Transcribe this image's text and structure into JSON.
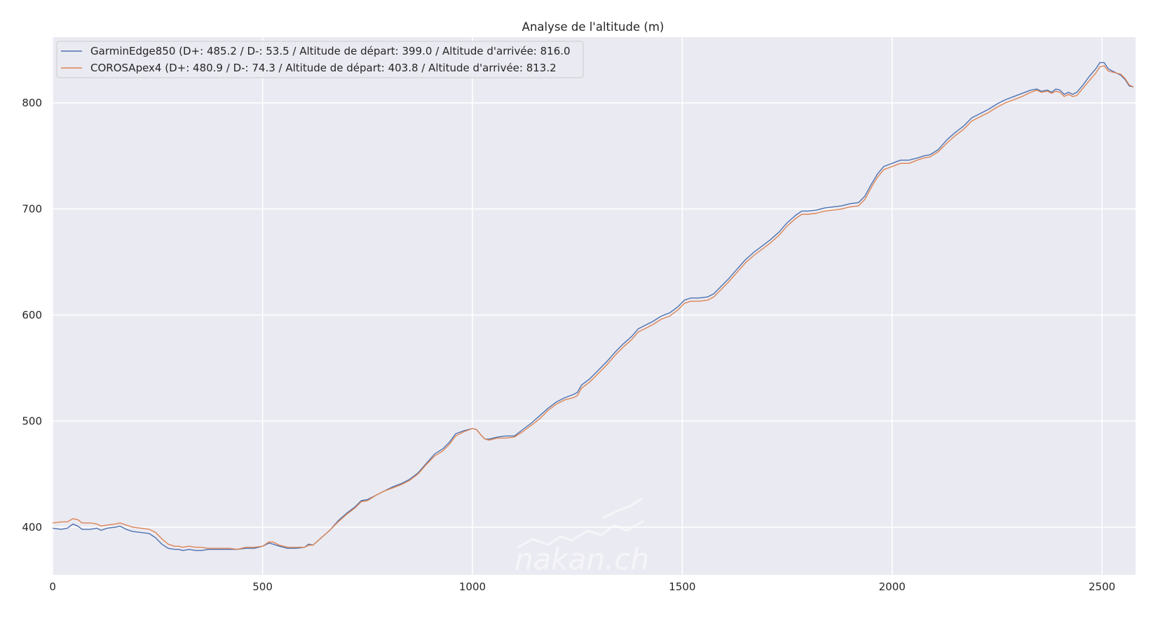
{
  "chart_data": {
    "type": "line",
    "title": "Analyse de l'altitude (m)",
    "xlabel": "",
    "ylabel": "",
    "xlim": [
      -2,
      2580
    ],
    "ylim": [
      355,
      862
    ],
    "x_ticks": [
      0,
      500,
      1000,
      1500,
      2000,
      2500
    ],
    "y_ticks": [
      400,
      500,
      600,
      700,
      800
    ],
    "grid": true,
    "legend_position": "top-left",
    "watermark": "nakan.ch",
    "series": [
      {
        "name": "GarminEdge850 (D+: 485.2 / D-: 53.5 / Altitude de départ: 399.0 / Altitude d'arrivée: 816.0",
        "color": "#4c72b0",
        "points": [
          [
            0,
            399
          ],
          [
            20,
            398
          ],
          [
            35,
            399
          ],
          [
            48,
            403
          ],
          [
            60,
            401
          ],
          [
            70,
            398
          ],
          [
            90,
            398
          ],
          [
            105,
            399
          ],
          [
            115,
            397
          ],
          [
            130,
            399
          ],
          [
            150,
            400
          ],
          [
            160,
            401
          ],
          [
            175,
            398
          ],
          [
            190,
            396
          ],
          [
            210,
            395
          ],
          [
            230,
            394
          ],
          [
            245,
            390
          ],
          [
            260,
            384
          ],
          [
            275,
            380
          ],
          [
            290,
            379
          ],
          [
            300,
            379
          ],
          [
            310,
            378
          ],
          [
            325,
            379
          ],
          [
            340,
            378
          ],
          [
            355,
            378
          ],
          [
            370,
            379
          ],
          [
            385,
            379
          ],
          [
            400,
            379
          ],
          [
            420,
            379
          ],
          [
            440,
            379
          ],
          [
            460,
            380
          ],
          [
            480,
            380
          ],
          [
            500,
            382
          ],
          [
            515,
            385
          ],
          [
            525,
            384
          ],
          [
            540,
            382
          ],
          [
            560,
            380
          ],
          [
            580,
            380
          ],
          [
            600,
            381
          ],
          [
            610,
            384
          ],
          [
            620,
            383
          ],
          [
            640,
            390
          ],
          [
            660,
            397
          ],
          [
            680,
            406
          ],
          [
            700,
            413
          ],
          [
            720,
            419
          ],
          [
            735,
            425
          ],
          [
            750,
            426
          ],
          [
            770,
            430
          ],
          [
            790,
            434
          ],
          [
            810,
            438
          ],
          [
            830,
            441
          ],
          [
            850,
            445
          ],
          [
            870,
            451
          ],
          [
            890,
            460
          ],
          [
            910,
            469
          ],
          [
            930,
            474
          ],
          [
            945,
            480
          ],
          [
            960,
            488
          ],
          [
            980,
            491
          ],
          [
            1000,
            493
          ],
          [
            1010,
            492
          ],
          [
            1020,
            487
          ],
          [
            1030,
            483
          ],
          [
            1040,
            483
          ],
          [
            1060,
            485
          ],
          [
            1080,
            486
          ],
          [
            1100,
            486
          ],
          [
            1120,
            492
          ],
          [
            1140,
            498
          ],
          [
            1160,
            505
          ],
          [
            1180,
            512
          ],
          [
            1200,
            518
          ],
          [
            1220,
            522
          ],
          [
            1240,
            525
          ],
          [
            1250,
            527
          ],
          [
            1260,
            534
          ],
          [
            1280,
            540
          ],
          [
            1300,
            548
          ],
          [
            1320,
            556
          ],
          [
            1340,
            565
          ],
          [
            1360,
            573
          ],
          [
            1380,
            580
          ],
          [
            1395,
            587
          ],
          [
            1410,
            590
          ],
          [
            1430,
            594
          ],
          [
            1450,
            599
          ],
          [
            1470,
            602
          ],
          [
            1490,
            608
          ],
          [
            1505,
            614
          ],
          [
            1520,
            616
          ],
          [
            1540,
            616
          ],
          [
            1560,
            617
          ],
          [
            1575,
            620
          ],
          [
            1590,
            626
          ],
          [
            1610,
            634
          ],
          [
            1630,
            643
          ],
          [
            1650,
            652
          ],
          [
            1670,
            659
          ],
          [
            1690,
            665
          ],
          [
            1710,
            671
          ],
          [
            1730,
            678
          ],
          [
            1750,
            687
          ],
          [
            1770,
            694
          ],
          [
            1785,
            698
          ],
          [
            1800,
            698
          ],
          [
            1820,
            699
          ],
          [
            1840,
            701
          ],
          [
            1860,
            702
          ],
          [
            1880,
            703
          ],
          [
            1900,
            705
          ],
          [
            1920,
            706
          ],
          [
            1935,
            712
          ],
          [
            1950,
            723
          ],
          [
            1965,
            733
          ],
          [
            1980,
            740
          ],
          [
            2000,
            743
          ],
          [
            2020,
            746
          ],
          [
            2040,
            746
          ],
          [
            2060,
            748
          ],
          [
            2075,
            750
          ],
          [
            2090,
            751
          ],
          [
            2110,
            756
          ],
          [
            2130,
            765
          ],
          [
            2150,
            772
          ],
          [
            2170,
            778
          ],
          [
            2190,
            786
          ],
          [
            2210,
            790
          ],
          [
            2230,
            794
          ],
          [
            2250,
            799
          ],
          [
            2270,
            803
          ],
          [
            2290,
            806
          ],
          [
            2310,
            809
          ],
          [
            2330,
            812
          ],
          [
            2345,
            813
          ],
          [
            2355,
            811
          ],
          [
            2370,
            812
          ],
          [
            2380,
            810
          ],
          [
            2390,
            813
          ],
          [
            2400,
            812
          ],
          [
            2410,
            808
          ],
          [
            2420,
            810
          ],
          [
            2430,
            808
          ],
          [
            2440,
            810
          ],
          [
            2455,
            817
          ],
          [
            2470,
            825
          ],
          [
            2485,
            832
          ],
          [
            2495,
            838
          ],
          [
            2505,
            838
          ],
          [
            2515,
            832
          ],
          [
            2525,
            830
          ],
          [
            2535,
            828
          ],
          [
            2545,
            826
          ],
          [
            2555,
            822
          ],
          [
            2565,
            816
          ],
          [
            2575,
            815
          ]
        ]
      },
      {
        "name": "COROSApex4 (D+: 480.9 / D-: 74.3 / Altitude de départ: 403.8 / Altitude d'arrivée: 813.2",
        "color": "#dd8452",
        "points": [
          [
            0,
            404
          ],
          [
            20,
            405
          ],
          [
            35,
            405
          ],
          [
            48,
            408
          ],
          [
            60,
            407
          ],
          [
            70,
            404
          ],
          [
            90,
            404
          ],
          [
            105,
            403
          ],
          [
            115,
            401
          ],
          [
            130,
            402
          ],
          [
            150,
            403
          ],
          [
            160,
            404
          ],
          [
            175,
            402
          ],
          [
            190,
            400
          ],
          [
            210,
            399
          ],
          [
            230,
            398
          ],
          [
            245,
            395
          ],
          [
            260,
            389
          ],
          [
            275,
            384
          ],
          [
            290,
            382
          ],
          [
            300,
            382
          ],
          [
            310,
            381
          ],
          [
            325,
            382
          ],
          [
            340,
            381
          ],
          [
            355,
            381
          ],
          [
            370,
            380
          ],
          [
            385,
            380
          ],
          [
            400,
            380
          ],
          [
            420,
            380
          ],
          [
            440,
            379
          ],
          [
            460,
            381
          ],
          [
            480,
            381
          ],
          [
            500,
            382
          ],
          [
            515,
            386
          ],
          [
            525,
            386
          ],
          [
            540,
            383
          ],
          [
            560,
            381
          ],
          [
            580,
            381
          ],
          [
            600,
            381
          ],
          [
            610,
            383
          ],
          [
            620,
            383
          ],
          [
            640,
            390
          ],
          [
            660,
            397
          ],
          [
            680,
            405
          ],
          [
            700,
            412
          ],
          [
            720,
            418
          ],
          [
            735,
            424
          ],
          [
            750,
            425
          ],
          [
            770,
            430
          ],
          [
            790,
            434
          ],
          [
            810,
            437
          ],
          [
            830,
            440
          ],
          [
            850,
            444
          ],
          [
            870,
            450
          ],
          [
            890,
            459
          ],
          [
            910,
            467
          ],
          [
            930,
            472
          ],
          [
            945,
            478
          ],
          [
            960,
            486
          ],
          [
            980,
            490
          ],
          [
            1000,
            493
          ],
          [
            1010,
            492
          ],
          [
            1020,
            487
          ],
          [
            1030,
            483
          ],
          [
            1040,
            482
          ],
          [
            1060,
            484
          ],
          [
            1080,
            484
          ],
          [
            1100,
            485
          ],
          [
            1120,
            490
          ],
          [
            1140,
            496
          ],
          [
            1160,
            502
          ],
          [
            1180,
            510
          ],
          [
            1200,
            516
          ],
          [
            1220,
            520
          ],
          [
            1240,
            522
          ],
          [
            1250,
            524
          ],
          [
            1260,
            531
          ],
          [
            1280,
            537
          ],
          [
            1300,
            545
          ],
          [
            1320,
            553
          ],
          [
            1340,
            562
          ],
          [
            1360,
            570
          ],
          [
            1380,
            577
          ],
          [
            1395,
            584
          ],
          [
            1410,
            587
          ],
          [
            1430,
            591
          ],
          [
            1450,
            596
          ],
          [
            1470,
            599
          ],
          [
            1490,
            605
          ],
          [
            1505,
            611
          ],
          [
            1520,
            613
          ],
          [
            1540,
            613
          ],
          [
            1560,
            614
          ],
          [
            1575,
            617
          ],
          [
            1590,
            623
          ],
          [
            1610,
            631
          ],
          [
            1630,
            640
          ],
          [
            1650,
            649
          ],
          [
            1670,
            656
          ],
          [
            1690,
            662
          ],
          [
            1710,
            668
          ],
          [
            1730,
            675
          ],
          [
            1750,
            684
          ],
          [
            1770,
            691
          ],
          [
            1785,
            695
          ],
          [
            1800,
            695
          ],
          [
            1820,
            696
          ],
          [
            1840,
            698
          ],
          [
            1860,
            699
          ],
          [
            1880,
            700
          ],
          [
            1900,
            702
          ],
          [
            1920,
            703
          ],
          [
            1935,
            709
          ],
          [
            1950,
            720
          ],
          [
            1965,
            730
          ],
          [
            1980,
            737
          ],
          [
            2000,
            740
          ],
          [
            2020,
            743
          ],
          [
            2040,
            743
          ],
          [
            2060,
            746
          ],
          [
            2075,
            748
          ],
          [
            2090,
            749
          ],
          [
            2110,
            754
          ],
          [
            2130,
            762
          ],
          [
            2150,
            769
          ],
          [
            2170,
            775
          ],
          [
            2190,
            783
          ],
          [
            2210,
            787
          ],
          [
            2230,
            791
          ],
          [
            2250,
            796
          ],
          [
            2270,
            800
          ],
          [
            2290,
            803
          ],
          [
            2310,
            806
          ],
          [
            2330,
            810
          ],
          [
            2345,
            812
          ],
          [
            2355,
            810
          ],
          [
            2370,
            811
          ],
          [
            2380,
            809
          ],
          [
            2390,
            811
          ],
          [
            2400,
            810
          ],
          [
            2410,
            806
          ],
          [
            2420,
            808
          ],
          [
            2430,
            806
          ],
          [
            2440,
            807
          ],
          [
            2455,
            814
          ],
          [
            2470,
            821
          ],
          [
            2485,
            828
          ],
          [
            2495,
            834
          ],
          [
            2505,
            835
          ],
          [
            2515,
            830
          ],
          [
            2525,
            829
          ],
          [
            2535,
            828
          ],
          [
            2545,
            827
          ],
          [
            2555,
            823
          ],
          [
            2565,
            817
          ],
          [
            2575,
            815
          ]
        ]
      }
    ]
  }
}
